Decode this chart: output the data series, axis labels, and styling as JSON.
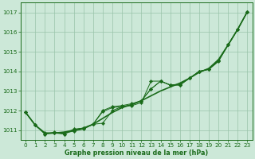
{
  "background_color": "#cce8d8",
  "plot_bg_color": "#cce8d8",
  "grid_color": "#99c4aa",
  "line_color": "#1a6b1a",
  "xlabel": "Graphe pression niveau de la mer (hPa)",
  "xlabel_color": "#1a6b1a",
  "ylabel_color": "#1a6b1a",
  "xlim": [
    -0.5,
    23.5
  ],
  "ylim": [
    1010.5,
    1017.5
  ],
  "yticks": [
    1011,
    1012,
    1013,
    1014,
    1015,
    1016,
    1017
  ],
  "xticks": [
    0,
    1,
    2,
    3,
    4,
    5,
    6,
    7,
    8,
    9,
    10,
    11,
    12,
    13,
    14,
    15,
    16,
    17,
    18,
    19,
    20,
    21,
    22,
    23
  ],
  "smooth_curve": {
    "x": [
      0,
      1,
      2,
      3,
      4,
      5,
      6,
      7,
      8,
      9,
      10,
      11,
      12,
      13,
      14,
      15,
      16,
      17,
      18,
      19,
      20,
      21,
      22,
      23
    ],
    "y": [
      1011.9,
      1011.25,
      1010.85,
      1010.85,
      1010.9,
      1011.0,
      1011.1,
      1011.3,
      1011.6,
      1011.9,
      1012.15,
      1012.3,
      1012.5,
      1012.75,
      1013.0,
      1013.2,
      1013.4,
      1013.65,
      1013.95,
      1014.15,
      1014.6,
      1015.35,
      1016.15,
      1017.05
    ]
  },
  "series1": {
    "x": [
      0,
      1,
      2,
      3,
      4,
      5,
      6,
      7,
      8,
      9,
      10,
      11,
      12,
      13,
      14,
      15,
      16,
      17,
      18,
      19,
      20,
      21,
      22,
      23
    ],
    "y": [
      1011.9,
      1011.25,
      1010.85,
      1010.85,
      1010.85,
      1010.95,
      1011.05,
      1011.3,
      1011.35,
      1012.0,
      1012.2,
      1012.25,
      1012.4,
      1013.5,
      1013.5,
      1013.3,
      1013.35,
      1013.65,
      1014.0,
      1014.1,
      1014.55,
      1015.35,
      1016.15,
      1017.05
    ]
  },
  "series2": {
    "x": [
      0,
      1,
      2,
      3,
      4,
      5,
      6,
      7,
      8,
      9,
      10,
      11,
      12,
      13,
      14,
      15,
      16,
      17,
      18,
      19,
      20,
      21,
      22,
      23
    ],
    "y": [
      1011.9,
      1011.25,
      1010.8,
      1010.85,
      1010.8,
      1011.0,
      1011.1,
      1011.3,
      1011.95,
      1012.15,
      1012.2,
      1012.3,
      1012.5,
      1013.1,
      1013.5,
      1013.3,
      1013.3,
      1013.65,
      1014.0,
      1014.1,
      1014.5,
      1015.35,
      1016.15,
      1017.05
    ]
  },
  "series3": {
    "x": [
      0,
      1,
      2,
      3,
      4,
      5,
      6,
      7,
      8,
      9,
      10,
      11,
      12,
      13,
      14,
      15,
      16,
      17,
      18,
      19,
      20,
      21,
      22,
      23
    ],
    "y": [
      1011.9,
      1011.25,
      1010.8,
      1010.9,
      1010.8,
      1011.05,
      1011.1,
      1011.3,
      1012.0,
      1012.2,
      1012.25,
      1012.35,
      1012.5,
      1013.1,
      1013.5,
      1013.3,
      1013.3,
      1013.65,
      1014.0,
      1014.1,
      1014.55,
      1015.35,
      1016.15,
      1017.05
    ]
  }
}
